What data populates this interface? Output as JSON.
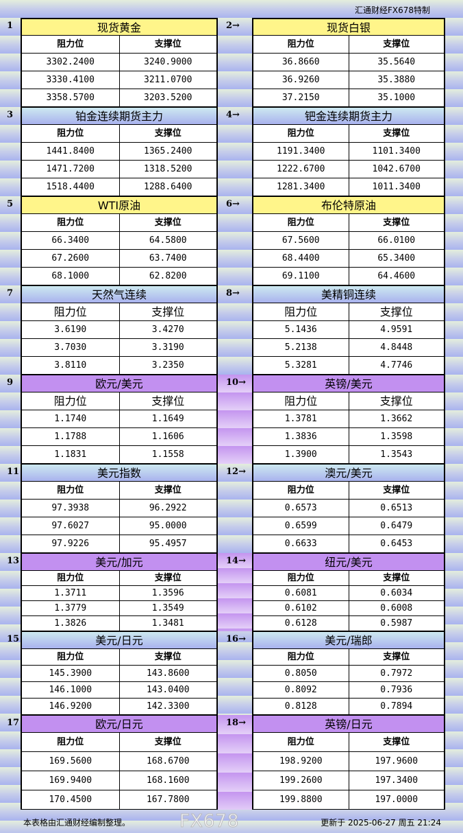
{
  "brand": "汇通财经FX678特制",
  "col_headers": {
    "resistance": "阻力位",
    "support": "支撑位"
  },
  "colors": {
    "yellow": "#fff58a",
    "blue": "#b8cdee",
    "purple": "#c290f0"
  },
  "sections": [
    {
      "num": "1",
      "title": "现货黄金",
      "color": "yellow",
      "res": [
        "3302.2400",
        "3330.4100",
        "3358.5700"
      ],
      "sup": [
        "3240.9000",
        "3211.0700",
        "3203.5200"
      ]
    },
    {
      "num": "2→",
      "title": "现货白银",
      "color": "yellow",
      "res": [
        "36.8660",
        "36.9260",
        "37.2150"
      ],
      "sup": [
        "35.5640",
        "35.3880",
        "35.1000"
      ]
    },
    {
      "num": "3",
      "title": "铂金连续期货主力",
      "color": "blue",
      "res": [
        "1441.8400",
        "1471.7200",
        "1518.4400"
      ],
      "sup": [
        "1365.2400",
        "1318.5200",
        "1288.6400"
      ]
    },
    {
      "num": "4→",
      "title": "钯金连续期货主力",
      "color": "blue",
      "res": [
        "1191.3400",
        "1222.6700",
        "1281.3400"
      ],
      "sup": [
        "1101.3400",
        "1042.6700",
        "1011.3400"
      ]
    },
    {
      "num": "5",
      "title": "WTI原油",
      "color": "yellow",
      "res": [
        "66.3400",
        "67.2600",
        "68.1000"
      ],
      "sup": [
        "64.5800",
        "63.7400",
        "62.8200"
      ]
    },
    {
      "num": "6→",
      "title": "布伦特原油",
      "color": "yellow",
      "res": [
        "67.5600",
        "68.4400",
        "69.1100"
      ],
      "sup": [
        "66.0100",
        "65.3400",
        "64.4600"
      ]
    },
    {
      "num": "7",
      "title": "天然气连续",
      "color": "blue",
      "res": [
        "3.6190",
        "3.7030",
        "3.8110"
      ],
      "sup": [
        "3.4270",
        "3.3190",
        "3.2350"
      ]
    },
    {
      "num": "8→",
      "title": "美精铜连续",
      "color": "blue",
      "res": [
        "5.1436",
        "5.2138",
        "5.3281"
      ],
      "sup": [
        "4.9591",
        "4.8448",
        "4.7746"
      ]
    },
    {
      "num": "9",
      "title": "欧元/美元",
      "color": "purple",
      "res": [
        "1.1740",
        "1.1788",
        "1.1831"
      ],
      "sup": [
        "1.1649",
        "1.1606",
        "1.1558"
      ]
    },
    {
      "num": "10→",
      "title": "英镑/美元",
      "color": "purple",
      "res": [
        "1.3781",
        "1.3836",
        "1.3900"
      ],
      "sup": [
        "1.3662",
        "1.3598",
        "1.3543"
      ]
    },
    {
      "num": "11",
      "title": "美元指数",
      "color": "blue",
      "res": [
        "97.3938",
        "97.6027",
        "97.9226"
      ],
      "sup": [
        "96.2922",
        "95.0000",
        "95.4957"
      ]
    },
    {
      "num": "12→",
      "title": "澳元/美元",
      "color": "blue",
      "res": [
        "0.6573",
        "0.6599",
        "0.6633"
      ],
      "sup": [
        "0.6513",
        "0.6479",
        "0.6453"
      ]
    },
    {
      "num": "13",
      "title": "美元/加元",
      "color": "purple",
      "res": [
        "1.3711",
        "1.3779",
        "1.3826"
      ],
      "sup": [
        "1.3596",
        "1.3549",
        "1.3481"
      ]
    },
    {
      "num": "14→",
      "title": "纽元/美元",
      "color": "purple",
      "res": [
        "0.6081",
        "0.6102",
        "0.6128"
      ],
      "sup": [
        "0.6034",
        "0.6008",
        "0.5987"
      ]
    },
    {
      "num": "15",
      "title": "美元/日元",
      "color": "blue",
      "res": [
        "145.3900",
        "146.1000",
        "146.9200"
      ],
      "sup": [
        "143.8600",
        "143.0400",
        "142.3300"
      ]
    },
    {
      "num": "16→",
      "title": "美元/瑞郎",
      "color": "blue",
      "res": [
        "0.8050",
        "0.8092",
        "0.8128"
      ],
      "sup": [
        "0.7972",
        "0.7936",
        "0.7894"
      ]
    },
    {
      "num": "17",
      "title": "欧元/日元",
      "color": "purple",
      "res": [
        "169.5600",
        "169.9400",
        "170.4500"
      ],
      "sup": [
        "168.6700",
        "168.1600",
        "167.7800"
      ]
    },
    {
      "num": "18→",
      "title": "英镑/日元",
      "color": "purple",
      "res": [
        "198.9200",
        "199.2600",
        "199.8800"
      ],
      "sup": [
        "197.9600",
        "197.3400",
        "197.0000"
      ]
    }
  ],
  "footer": {
    "note": "本表格由汇通财经编制整理。",
    "updated": "更新于 2025-06-27 周五 21:24"
  },
  "watermark": "FX678"
}
